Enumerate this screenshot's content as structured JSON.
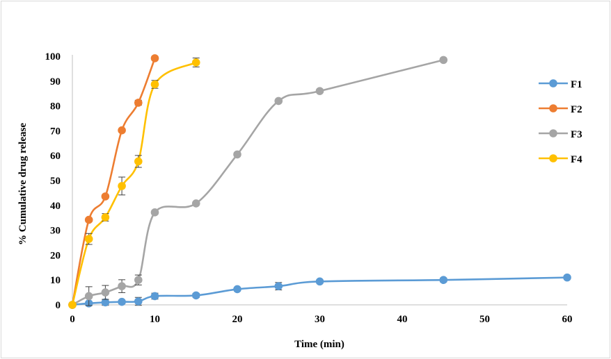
{
  "chart_data": {
    "type": "line",
    "title": "",
    "xlabel": "Time (min)",
    "ylabel": "% Cumulative drug release",
    "xlim": [
      0,
      60
    ],
    "ylim": [
      0,
      100
    ],
    "xticks": [
      0,
      10,
      20,
      30,
      40,
      50,
      60
    ],
    "yticks": [
      0,
      10,
      20,
      30,
      40,
      50,
      60,
      70,
      80,
      90,
      100
    ],
    "grid": false,
    "legend_position": "right",
    "series": [
      {
        "name": "F1",
        "color": "#5b9bd5",
        "x": [
          0,
          2,
          4,
          6,
          8,
          10,
          15,
          20,
          25,
          30,
          45,
          60
        ],
        "y": [
          0,
          0.6,
          1.0,
          1.2,
          1.4,
          3.5,
          3.8,
          6.3,
          7.5,
          9.4,
          10.0,
          11.0
        ],
        "err": [
          0,
          0.3,
          1.2,
          0.5,
          1.6,
          1.2,
          0.8,
          0.4,
          1.5,
          0.6,
          0.8,
          0.3
        ]
      },
      {
        "name": "F2",
        "color": "#ed7d31",
        "x": [
          0,
          2,
          4,
          6,
          8,
          10
        ],
        "y": [
          0,
          34.2,
          43.6,
          70.2,
          81.3,
          99.2
        ],
        "err": [
          0,
          0.6,
          0.6,
          0.6,
          1.0,
          0.6
        ]
      },
      {
        "name": "F3",
        "color": "#a5a5a5",
        "x": [
          0,
          2,
          4,
          6,
          8,
          10,
          15,
          20,
          25,
          30,
          45
        ],
        "y": [
          0,
          3.5,
          5.0,
          7.5,
          10.0,
          37.2,
          40.8,
          60.5,
          82.0,
          86.0,
          98.5
        ],
        "err": [
          0,
          3.8,
          2.8,
          2.6,
          2.0,
          0.5,
          0.5,
          0.4,
          0.5,
          0.4,
          0.4
        ]
      },
      {
        "name": "F4",
        "color": "#ffc000",
        "x": [
          0,
          2,
          4,
          6,
          8,
          10,
          15
        ],
        "y": [
          0,
          26.5,
          35.2,
          47.8,
          57.7,
          88.7,
          97.5
        ],
        "err": [
          0,
          2.2,
          1.5,
          3.6,
          2.4,
          1.6,
          1.8
        ]
      }
    ]
  }
}
